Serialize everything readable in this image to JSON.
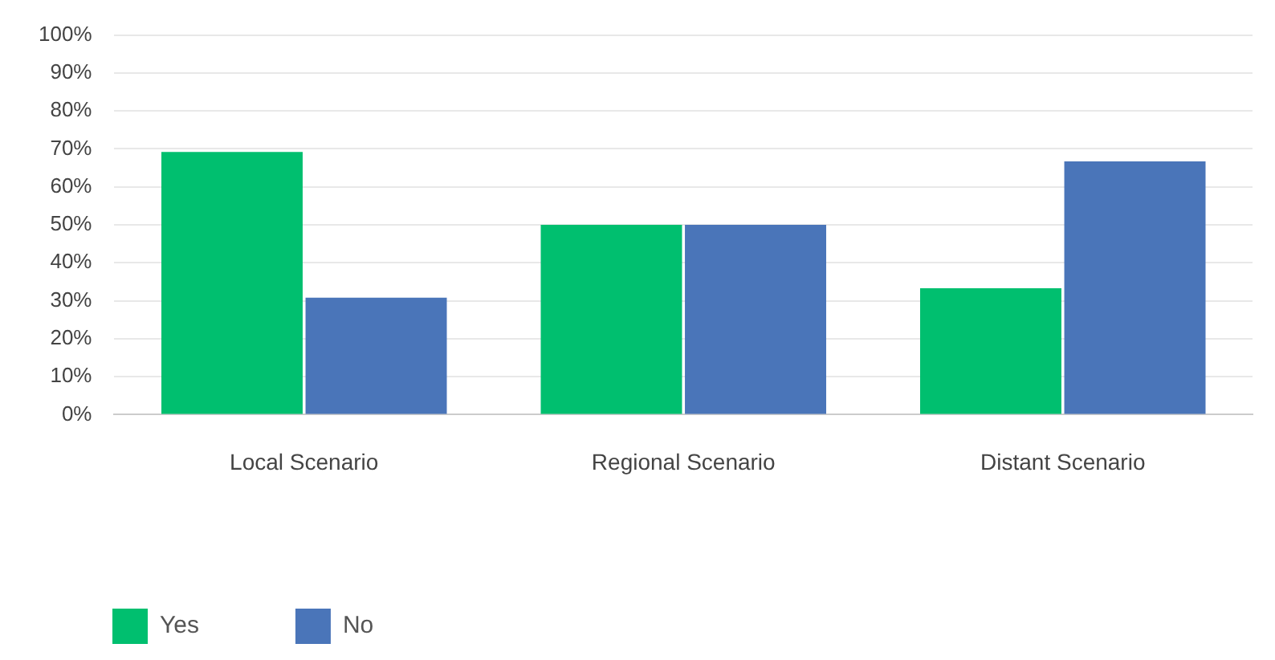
{
  "chart_data": {
    "type": "bar",
    "categories": [
      "Local Scenario",
      "Regional Scenario",
      "Distant Scenario"
    ],
    "series": [
      {
        "name": "Yes",
        "color": "#00bf6f",
        "values": [
          69.2,
          50,
          33.3
        ]
      },
      {
        "name": "No",
        "color": "#4a75b9",
        "values": [
          30.8,
          50,
          66.7
        ]
      }
    ],
    "ylim": [
      0,
      100
    ],
    "yticks": [
      {
        "value": 0,
        "label": "0%"
      },
      {
        "value": 10,
        "label": "10%"
      },
      {
        "value": 20,
        "label": "20%"
      },
      {
        "value": 30,
        "label": "30%"
      },
      {
        "value": 40,
        "label": "40%"
      },
      {
        "value": 50,
        "label": "50%"
      },
      {
        "value": 60,
        "label": "60%"
      },
      {
        "value": 70,
        "label": "70%"
      },
      {
        "value": 80,
        "label": "80%"
      },
      {
        "value": 90,
        "label": "90%"
      },
      {
        "value": 100,
        "label": "100%"
      }
    ],
    "grid": "y",
    "legend": "bottom left"
  }
}
